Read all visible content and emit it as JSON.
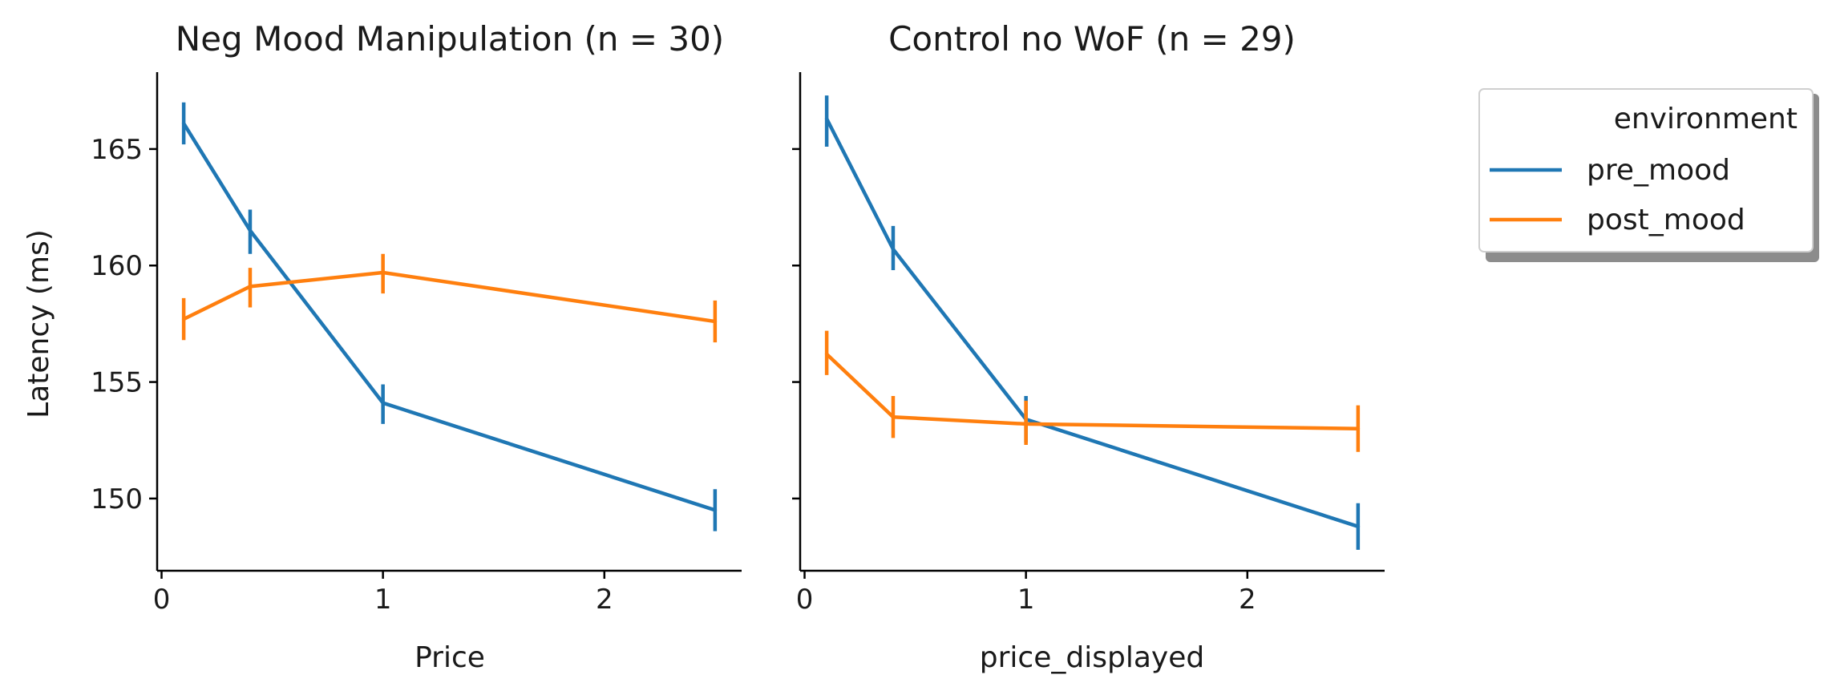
{
  "chart_data": [
    {
      "type": "line",
      "title": "Neg Mood Manipulation (n = 30)",
      "xlabel": "Price",
      "ylabel": "Latency (ms)",
      "xlim": [
        -0.02,
        2.62
      ],
      "ylim": [
        146.9,
        168.3
      ],
      "xticks": [
        0,
        1,
        2
      ],
      "xtick_labels": [
        "0",
        "1",
        "2"
      ],
      "yticks": [
        150,
        155,
        160,
        165
      ],
      "ytick_labels": [
        "150",
        "155",
        "160",
        "165"
      ],
      "x": [
        0.1,
        0.4,
        1.0,
        2.5
      ],
      "series": [
        {
          "name": "pre_mood",
          "color": "#1f77b4",
          "values": [
            166.1,
            161.5,
            154.1,
            149.5
          ],
          "err_low": [
            165.2,
            160.5,
            153.2,
            148.6
          ],
          "err_high": [
            167.0,
            162.4,
            154.9,
            150.4
          ]
        },
        {
          "name": "post_mood",
          "color": "#ff7f0e",
          "values": [
            157.7,
            159.1,
            159.7,
            157.6
          ],
          "err_low": [
            156.8,
            158.2,
            158.8,
            156.7
          ],
          "err_high": [
            158.6,
            159.9,
            160.5,
            158.5
          ]
        }
      ]
    },
    {
      "type": "line",
      "title": "Control no WoF (n = 29)",
      "xlabel": "price_displayed",
      "ylabel": "",
      "xlim": [
        -0.02,
        2.62
      ],
      "ylim": [
        146.9,
        168.3
      ],
      "xticks": [
        0,
        1,
        2
      ],
      "xtick_labels": [
        "0",
        "1",
        "2"
      ],
      "yticks": [
        150,
        155,
        160,
        165
      ],
      "ytick_labels": [
        "",
        "",
        "",
        ""
      ],
      "x": [
        0.1,
        0.4,
        1.0,
        2.5
      ],
      "series": [
        {
          "name": "pre_mood",
          "color": "#1f77b4",
          "values": [
            166.3,
            160.7,
            153.4,
            148.8
          ],
          "err_low": [
            165.1,
            159.8,
            152.4,
            147.8
          ],
          "err_high": [
            167.3,
            161.7,
            154.4,
            149.8
          ]
        },
        {
          "name": "post_mood",
          "color": "#ff7f0e",
          "values": [
            156.2,
            153.5,
            153.2,
            153.0
          ],
          "err_low": [
            155.3,
            152.6,
            152.3,
            152.0
          ],
          "err_high": [
            157.2,
            154.4,
            154.2,
            154.0
          ]
        }
      ]
    }
  ],
  "legend": {
    "title": "environment",
    "placement": "outside-right",
    "entries": [
      {
        "label": "pre_mood",
        "color": "#1f77b4"
      },
      {
        "label": "post_mood",
        "color": "#ff7f0e"
      }
    ]
  }
}
